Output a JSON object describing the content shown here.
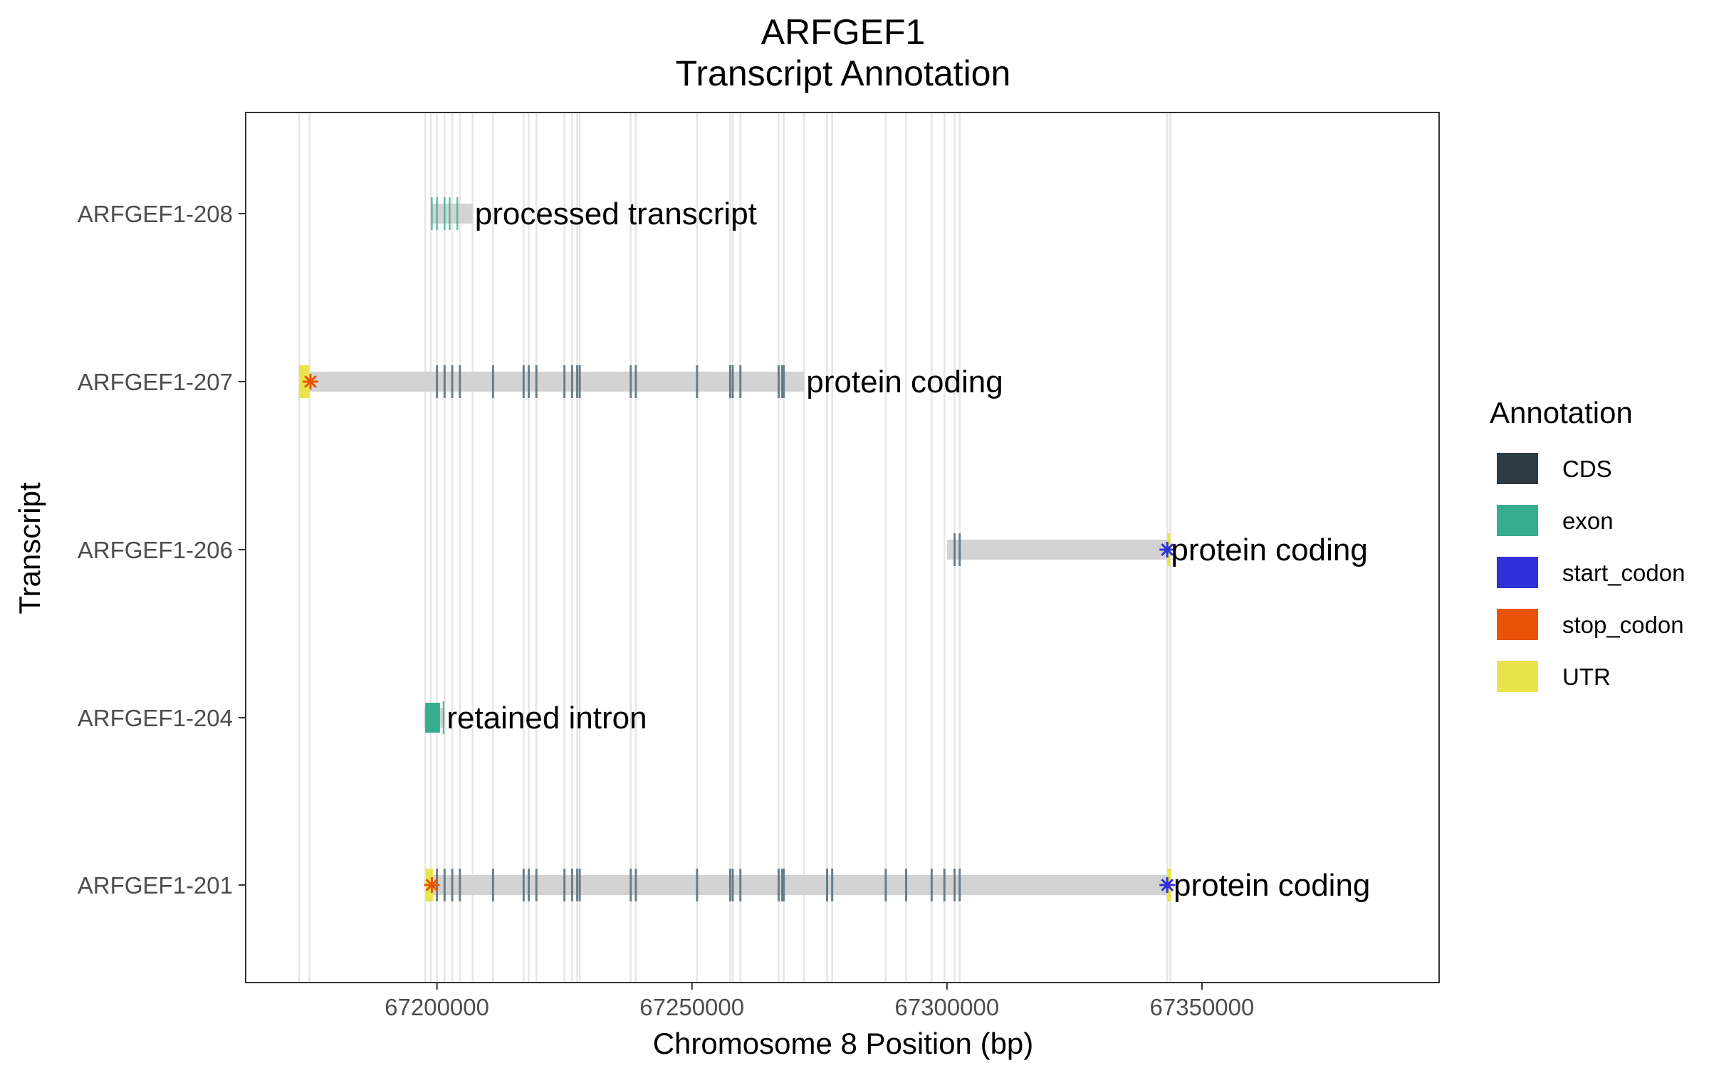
{
  "chart_data": {
    "type": "gene-track",
    "title_line1": "ARFGEF1",
    "title_line2": "Transcript Annotation",
    "xlabel": "Chromosome 8 Position (bp)",
    "ylabel": "Transcript",
    "xlim": [
      67162500,
      67396500
    ],
    "xticks": [
      67200000,
      67250000,
      67300000,
      67350000
    ],
    "xtick_labels": [
      "67200000",
      "67250000",
      "67300000",
      "67350000"
    ],
    "grid": "vertical lines at every feature boundary",
    "legend": {
      "title": "Annotation",
      "position": "right",
      "items": [
        {
          "label": "CDS",
          "color": "#2e3a44"
        },
        {
          "label": "exon",
          "color": "#35ad8e"
        },
        {
          "label": "start_codon",
          "color": "#2f30d9"
        },
        {
          "label": "stop_codon",
          "color": "#ea5306"
        },
        {
          "label": "UTR",
          "color": "#e9e44a"
        }
      ]
    },
    "transcript_body_color": "#d3d3d3",
    "transcripts": [
      {
        "name": "ARFGEF1-208",
        "biotype": "processed transcript",
        "start": 67198800,
        "end": 67207000,
        "features": [
          {
            "type": "exon",
            "pos": 67199000
          },
          {
            "type": "exon",
            "pos": 67200000
          },
          {
            "type": "exon",
            "pos": 67201500
          },
          {
            "type": "exon",
            "pos": 67202500
          },
          {
            "type": "exon",
            "pos": 67204000
          }
        ]
      },
      {
        "name": "ARFGEF1-207",
        "biotype": "protein coding",
        "start": 67173000,
        "end": 67272000,
        "utr": [
          [
            67173000,
            67175000
          ]
        ],
        "stop_codons": [
          67175200
        ],
        "start_codons": [],
        "cds": [
          67200000,
          67201500,
          67203000,
          67204500,
          67211000,
          67217000,
          67218000,
          67219500,
          67225000,
          67226500,
          67227500,
          67228000,
          67238000,
          67239000,
          67251000,
          67257500,
          67258000,
          67259500,
          67267000,
          67267700,
          67268000
        ]
      },
      {
        "name": "ARFGEF1-206",
        "biotype": "protein coding",
        "start": 67300000,
        "end": 67343500,
        "utr": [
          [
            67343200,
            67343800
          ]
        ],
        "stop_codons": [],
        "start_codons": [
          67343200
        ],
        "cds": [
          67301500,
          67302500
        ]
      },
      {
        "name": "ARFGEF1-204",
        "biotype": "retained intron",
        "start": 67197500,
        "end": 67201500,
        "exon_blocks": [
          [
            67197700,
            67200600
          ]
        ],
        "features": [
          {
            "type": "exon",
            "pos": 67201300
          }
        ]
      },
      {
        "name": "ARFGEF1-201",
        "biotype": "protein coding",
        "start": 67197800,
        "end": 67344000,
        "utr": [
          [
            67197800,
            67199200
          ],
          [
            67343200,
            67344000
          ]
        ],
        "stop_codons": [
          67199000
        ],
        "start_codons": [
          67343200
        ],
        "cds": [
          67200000,
          67201500,
          67203000,
          67204500,
          67211000,
          67217000,
          67218000,
          67219500,
          67225000,
          67226500,
          67227500,
          67228000,
          67238000,
          67239000,
          67251000,
          67257500,
          67258000,
          67259500,
          67267000,
          67267700,
          67268000,
          67276500,
          67277500,
          67288000,
          67292000,
          67297000,
          67299500,
          67301500,
          67302500
        ]
      }
    ],
    "gridlines": [
      67173000,
      67175000,
      67197700,
      67198800,
      67200000,
      67201500,
      67203000,
      67204500,
      67207000,
      67211000,
      67217000,
      67218000,
      67219500,
      67225000,
      67226500,
      67227500,
      67228000,
      67238000,
      67239000,
      67251000,
      67257500,
      67258000,
      67259500,
      67267000,
      67268000,
      67272000,
      67276500,
      67277500,
      67288000,
      67292000,
      67297000,
      67299500,
      67301500,
      67302500,
      67343200,
      67343800
    ]
  }
}
